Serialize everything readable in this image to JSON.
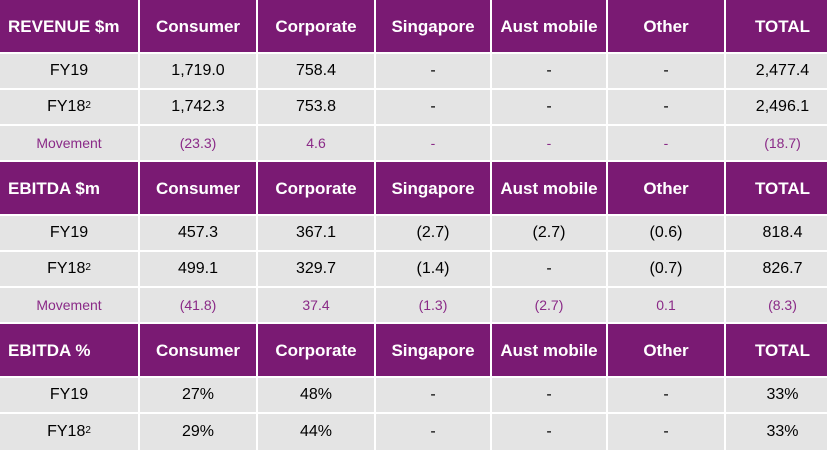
{
  "sections": [
    {
      "header": [
        "REVENUE $m",
        "Consumer",
        "Corporate",
        "Singapore",
        "Aust mobile",
        "Other",
        "TOTAL"
      ],
      "rows": [
        [
          "FY19",
          "1,719.0",
          "758.4",
          "-",
          "-",
          "-",
          "2,477.4"
        ],
        [
          "FY18",
          "1,742.3",
          "753.8",
          "-",
          "-",
          "-",
          "2,496.1"
        ],
        [
          "Movement",
          "(23.3)",
          "4.6",
          "-",
          "-",
          "-",
          "(18.7)"
        ]
      ]
    },
    {
      "header": [
        "EBITDA $m",
        "Consumer",
        "Corporate",
        "Singapore",
        "Aust mobile",
        "Other",
        "TOTAL"
      ],
      "rows": [
        [
          "FY19",
          "457.3",
          "367.1",
          "(2.7)",
          "(2.7)",
          "(0.6)",
          "818.4"
        ],
        [
          "FY18",
          "499.1",
          "329.7",
          "(1.4)",
          "-",
          "(0.7)",
          "826.7"
        ],
        [
          "Movement",
          "(41.8)",
          "37.4",
          "(1.3)",
          "(2.7)",
          "0.1",
          "(8.3)"
        ]
      ]
    },
    {
      "header": [
        "EBITDA %",
        "Consumer",
        "Corporate",
        "Singapore",
        "Aust mobile",
        "Other",
        "TOTAL"
      ],
      "rows": [
        [
          "FY19",
          "27%",
          "48%",
          "-",
          "-",
          "-",
          "33%"
        ],
        [
          "FY18",
          "29%",
          "44%",
          "-",
          "-",
          "-",
          "33%"
        ]
      ]
    }
  ],
  "fy18_superscript": "2",
  "colors": {
    "header_bg": "#7a1a73",
    "header_text": "#ffffff",
    "row_bg": "#e4e4e4",
    "movement_text": "#8a2a87"
  }
}
